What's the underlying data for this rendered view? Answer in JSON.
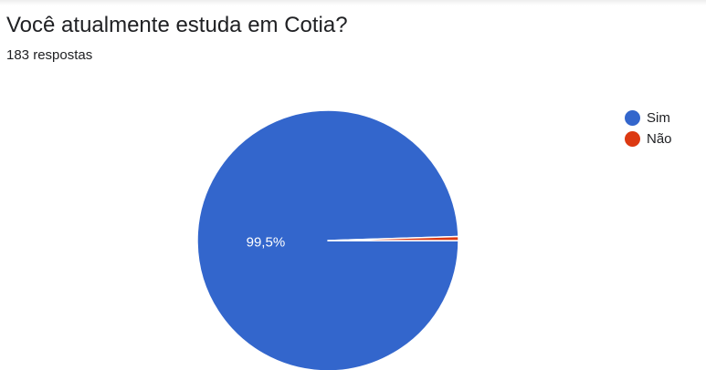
{
  "form_question": {
    "title": "Você atualmente estuda em Cotia?",
    "response_count": "183 respostas"
  },
  "chart_data": {
    "type": "pie",
    "categories": [
      "Sim",
      "Não"
    ],
    "values": [
      99.5,
      0.5
    ],
    "data_labels": [
      "99,5%",
      ""
    ],
    "colors": [
      "#3366cc",
      "#dc3912"
    ],
    "legend_position": "right",
    "start_angle": "3 o'clock, clockwise"
  },
  "legend": {
    "items": [
      {
        "label": "Sim",
        "color": "#3366cc"
      },
      {
        "label": "Não",
        "color": "#dc3912"
      }
    ]
  }
}
